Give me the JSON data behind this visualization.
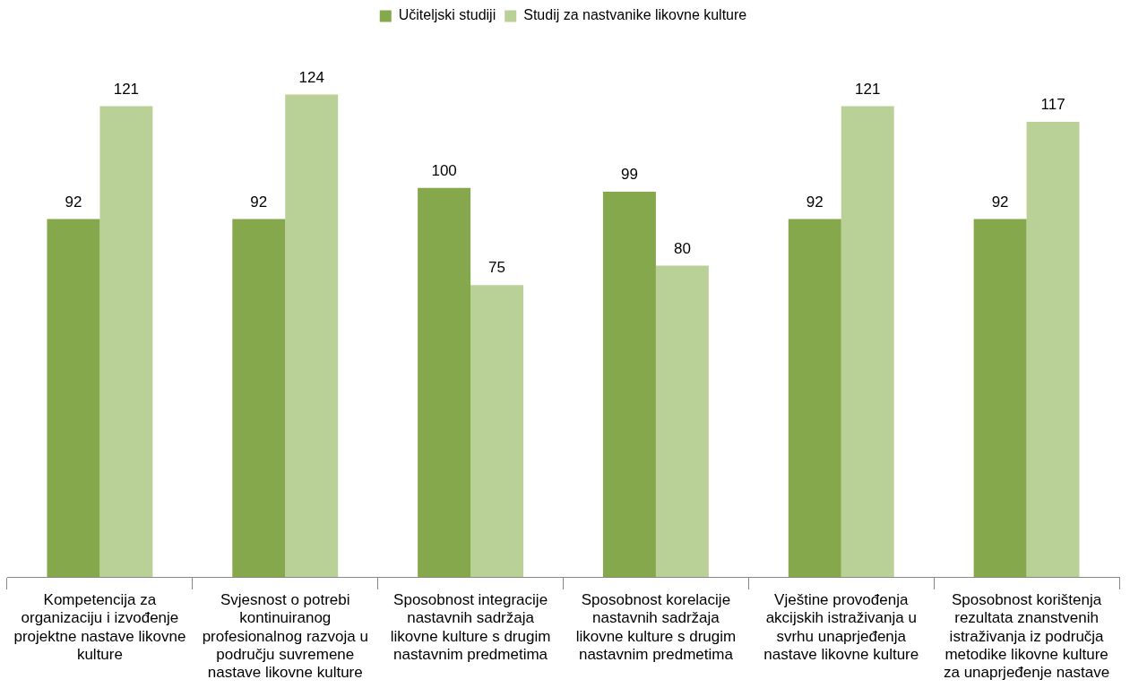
{
  "chart_data": {
    "type": "bar",
    "categories": [
      "Kompetencija za organizaciju i izvođenje projektne nastave likovne kulture",
      "Svjesnost o potrebi kontinuiranog profesionalnog razvoja u području suvremene nastave likovne kulture",
      "Sposobnost integracije nastavnih sadržaja likovne kulture s drugim nastavnim predmetima",
      "Sposobnost korelacije nastavnih sadržaja likovne kulture s drugim nastavnim predmetima",
      "Vještine provođenja akcijskih istraživanja u svrhu unaprjeđenja nastave likovne kulture",
      "Sposobnost korištenja rezultata znanstvenih istraživanja iz područja metodike likovne kulture za unaprjeđenje nastave"
    ],
    "series": [
      {
        "name": "Učiteljski studiji",
        "color": "#86a84c",
        "values": [
          92,
          92,
          100,
          99,
          92,
          92
        ]
      },
      {
        "name": "Studij za nastvanike likovne kulture",
        "color": "#b9d197",
        "values": [
          121,
          124,
          75,
          80,
          121,
          117
        ]
      }
    ],
    "data_labels": true,
    "legend": "top",
    "grid": false,
    "tick_labels": "x"
  }
}
